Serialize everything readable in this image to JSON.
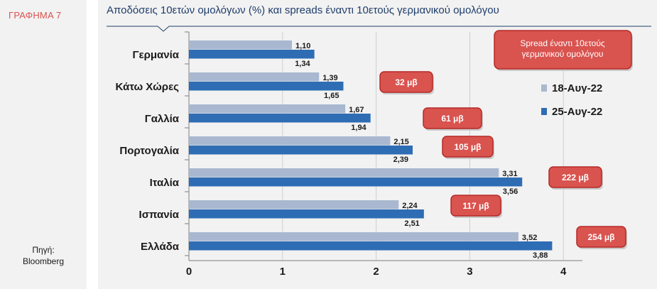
{
  "figure_label": "ΓΡΑΦΗΜΑ 7",
  "source_line1": "Πηγή:",
  "source_line2": "Bloomberg",
  "chart_data": {
    "type": "bar",
    "orientation": "horizontal",
    "title": "Αποδόσεις 10ετών ομολόγων (%) και spreads έναντι 10ετούς γερμανικού ομολόγου",
    "categories": [
      "Γερμανία",
      "Κάτω Χώρες",
      "Γαλλία",
      "Πορτογαλία",
      "Ιταλία",
      "Ισπανία",
      "Ελλάδα"
    ],
    "series": [
      {
        "name": "18-Αυγ-22",
        "values": [
          1.1,
          1.39,
          1.67,
          2.15,
          3.31,
          2.24,
          3.52
        ],
        "labels": [
          "1,10",
          "1,39",
          "1,67",
          "2,15",
          "3,31",
          "2,24",
          "3,52"
        ],
        "color": "#a9b8d0"
      },
      {
        "name": "25-Αυγ-22",
        "values": [
          1.34,
          1.65,
          1.94,
          2.39,
          3.56,
          2.51,
          3.88
        ],
        "labels": [
          "1,34",
          "1,65",
          "1,94",
          "2,39",
          "3,56",
          "2,51",
          "3,88"
        ],
        "color": "#2e6db4"
      }
    ],
    "xlim": [
      0,
      4.2
    ],
    "xticks": [
      0,
      1,
      2,
      3,
      4
    ],
    "spreads_label": "Spread έναντι 10ετούς γερμανικού ομολόγου",
    "spreads": [
      {
        "country": "Κάτω Χώρες",
        "text": "32 μβ"
      },
      {
        "country": "Γαλλία",
        "text": "61 μβ"
      },
      {
        "country": "Πορτογαλία",
        "text": "105 μβ"
      },
      {
        "country": "Ιταλία",
        "text": "222 μβ"
      },
      {
        "country": "Ισπανία",
        "text": "117 μβ"
      },
      {
        "country": "Ελλάδα",
        "text": "254 μβ"
      }
    ],
    "legend_position": "right",
    "grid": "vertical",
    "colors": {
      "spread_box": "#d9534f",
      "spread_border": "#b52b27",
      "title": "#1f3d6b"
    }
  }
}
